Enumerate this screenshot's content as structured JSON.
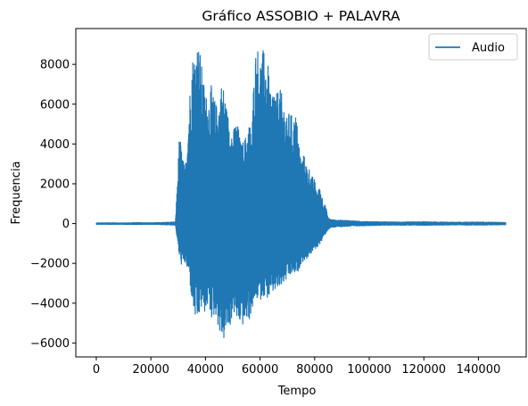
{
  "chart_data": {
    "type": "line",
    "title": "Gráfico ASSOBIO + PALAVRA",
    "xlabel": "Tempo",
    "ylabel": "Frequencia",
    "xlim": [
      -7500,
      157500
    ],
    "ylim": [
      -6700,
      9800
    ],
    "xticks": [
      0,
      20000,
      40000,
      60000,
      80000,
      100000,
      120000,
      140000
    ],
    "xtick_labels": [
      "0",
      "20000",
      "40000",
      "60000",
      "80000",
      "100000",
      "120000",
      "140000"
    ],
    "yticks": [
      -6000,
      -4000,
      -2000,
      0,
      2000,
      4000,
      6000,
      8000
    ],
    "ytick_labels": [
      "−6000",
      "−4000",
      "−2000",
      "0",
      "2000",
      "4000",
      "6000",
      "8000"
    ],
    "legend": {
      "position": "top-right",
      "entries": [
        "Audio"
      ]
    },
    "grid": false,
    "series": [
      {
        "name": "Audio",
        "color": "#1f77b4",
        "x_range": [
          0,
          150000
        ],
        "envelope": {
          "x": [
            0,
            5000,
            10000,
            15000,
            20000,
            25000,
            29000,
            30500,
            31500,
            32500,
            34000,
            35000,
            36000,
            37000,
            38000,
            39000,
            40000,
            41000,
            42000,
            43000,
            44000,
            45000,
            46000,
            47000,
            48000,
            49000,
            50000,
            51000,
            52000,
            53000,
            54000,
            55000,
            56000,
            57000,
            58000,
            59000,
            60000,
            61000,
            62000,
            63000,
            64000,
            65000,
            66000,
            67000,
            68000,
            69000,
            70000,
            71000,
            72000,
            73000,
            74000,
            75000,
            76000,
            77000,
            78000,
            79000,
            80000,
            81000,
            82000,
            83000,
            84000,
            85000,
            86000,
            88000,
            92000,
            96000,
            100000,
            110000,
            120000,
            130000,
            140000,
            150000
          ],
          "upper": [
            30,
            40,
            30,
            50,
            40,
            60,
            80,
            4600,
            3500,
            2700,
            6000,
            8400,
            8600,
            9200,
            8700,
            7500,
            6600,
            6200,
            7000,
            6400,
            6000,
            6200,
            7200,
            6700,
            5600,
            5300,
            4500,
            5200,
            4900,
            4000,
            4200,
            4500,
            5100,
            4700,
            8500,
            9000,
            8300,
            8800,
            8400,
            7900,
            6200,
            7200,
            6500,
            6900,
            6500,
            6000,
            5200,
            5900,
            5100,
            5600,
            4600,
            3200,
            3500,
            3000,
            2800,
            2400,
            2200,
            1600,
            1900,
            1200,
            900,
            300,
            200,
            180,
            160,
            120,
            100,
            80,
            90,
            70,
            80,
            60
          ],
          "lower": [
            -40,
            -40,
            -40,
            -50,
            -40,
            -60,
            -80,
            -1800,
            -2200,
            -2000,
            -2600,
            -3900,
            -4700,
            -5100,
            -4500,
            -4200,
            -4600,
            -4000,
            -4800,
            -4700,
            -4600,
            -5500,
            -5800,
            -5900,
            -5300,
            -5300,
            -4400,
            -4700,
            -5100,
            -5000,
            -5200,
            -4800,
            -4900,
            -4400,
            -4000,
            -3800,
            -3900,
            -3600,
            -3700,
            -3800,
            -3600,
            -3500,
            -3300,
            -3400,
            -3100,
            -3000,
            -2800,
            -2700,
            -2500,
            -2600,
            -2400,
            -2000,
            -1900,
            -1800,
            -1600,
            -1500,
            -1300,
            -1200,
            -1000,
            -800,
            -500,
            -300,
            -200,
            -170,
            -140,
            -120,
            -100,
            -80,
            -90,
            -70,
            -80,
            -60
          ]
        }
      }
    ]
  }
}
